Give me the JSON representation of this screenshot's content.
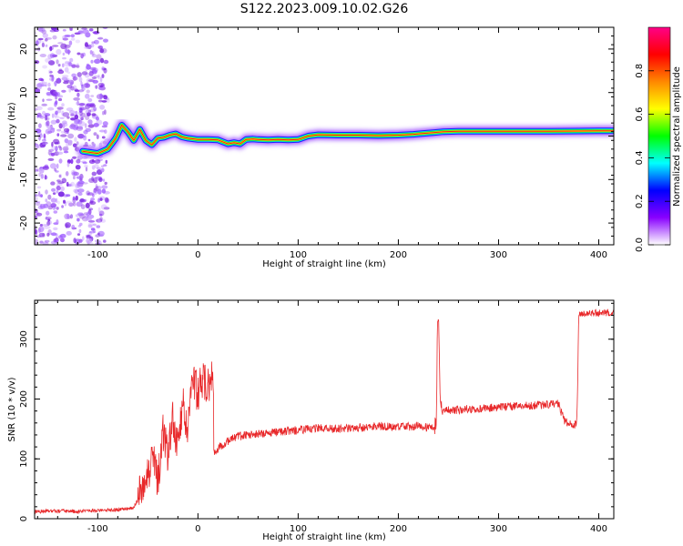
{
  "figure": {
    "title": "S122.2023.009.10.02.G26"
  },
  "chart_data": [
    {
      "type": "heatmap",
      "xlabel": "Height of straight line (km)",
      "ylabel": "Frequency (Hz)",
      "xlim": [
        -163,
        415
      ],
      "ylim": [
        -25,
        25
      ],
      "xticks": [
        -100,
        0,
        100,
        200,
        300,
        400
      ],
      "yticks": [
        -20,
        -10,
        0,
        10,
        20
      ],
      "grid": false,
      "colorbar": {
        "label": "Normalized spectral amplitude",
        "range": [
          0.0,
          1.0
        ],
        "ticks": [
          0.0,
          0.2,
          0.4,
          0.6,
          0.8
        ],
        "colors": [
          "#ffffff",
          "#8800ff",
          "#0000ff",
          "#00ffff",
          "#00ff00",
          "#ffff00",
          "#ff8800",
          "#ff0000",
          "#ff0088"
        ]
      },
      "ridge": {
        "x": [
          -115,
          -100,
          -90,
          -82,
          -76,
          -70,
          -64,
          -58,
          -52,
          -46,
          -40,
          -34,
          -28,
          -22,
          -16,
          -10,
          0,
          10,
          20,
          30,
          36,
          42,
          48,
          55,
          60,
          70,
          80,
          90,
          100,
          110,
          120,
          140,
          160,
          180,
          200,
          215,
          225,
          235,
          245,
          260,
          300,
          350,
          400,
          415
        ],
        "freq_hz": [
          -3.5,
          -4.0,
          -3.0,
          -0.5,
          2.5,
          1.0,
          -1.0,
          1.5,
          -1.0,
          -2.0,
          -0.5,
          -0.3,
          0.2,
          0.5,
          -0.2,
          -0.5,
          -0.8,
          -0.8,
          -0.9,
          -1.8,
          -1.5,
          -1.8,
          -0.8,
          -0.7,
          -0.8,
          -0.9,
          -0.8,
          -0.9,
          -0.8,
          0.0,
          0.3,
          0.2,
          0.2,
          0.1,
          0.2,
          0.4,
          0.6,
          0.8,
          1.0,
          1.1,
          1.1,
          1.1,
          1.2,
          1.2
        ]
      }
    },
    {
      "type": "line",
      "xlabel": "Height of straight line (km)",
      "ylabel": "SNR (10 * v/v)",
      "xlim": [
        -163,
        415
      ],
      "ylim": [
        0,
        365
      ],
      "xticks": [
        -100,
        0,
        100,
        200,
        300,
        400
      ],
      "yticks": [
        0,
        100,
        200,
        300
      ],
      "grid": false,
      "color": "#e8282a",
      "series": [
        {
          "x": [
            -163,
            -140,
            -120,
            -100,
            -80,
            -65,
            -60,
            -55,
            -50,
            -45,
            -40,
            -35,
            -30,
            -25,
            -20,
            -15,
            -10,
            -5,
            0,
            5,
            10,
            15,
            16,
            20,
            30,
            40,
            60,
            80,
            100,
            120,
            140,
            160,
            180,
            200,
            220,
            236,
            238,
            239,
            240,
            241,
            242,
            260,
            280,
            300,
            320,
            340,
            360,
            365,
            370,
            375,
            378,
            379,
            380,
            381,
            385,
            400,
            415
          ],
          "y": [
            12,
            13,
            12,
            14,
            15,
            18,
            30,
            50,
            80,
            100,
            60,
            140,
            110,
            170,
            120,
            200,
            150,
            230,
            210,
            240,
            215,
            240,
            110,
            118,
            130,
            138,
            142,
            145,
            148,
            152,
            150,
            152,
            155,
            153,
            155,
            150,
            155,
            335,
            345,
            250,
            180,
            182,
            184,
            186,
            188,
            190,
            192,
            165,
            158,
            155,
            160,
            230,
            345,
            340,
            342,
            344,
            345
          ]
        }
      ]
    }
  ]
}
